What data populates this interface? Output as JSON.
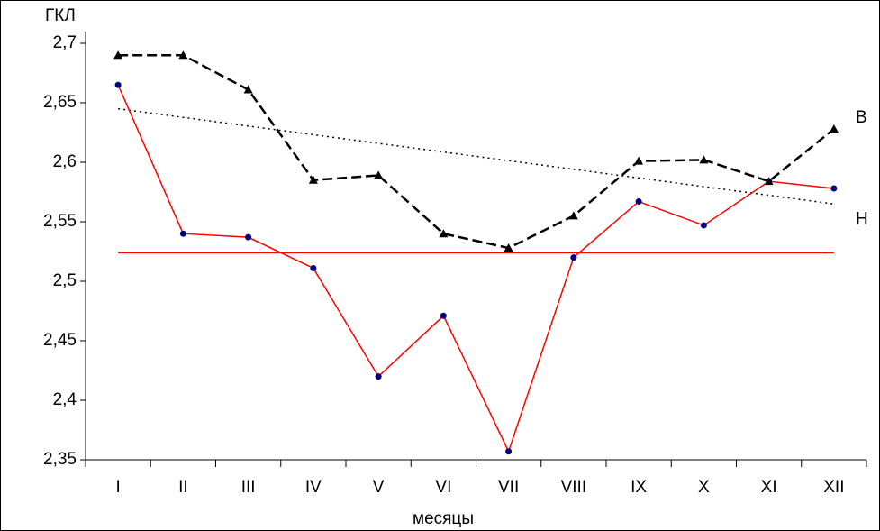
{
  "chart_data": {
    "type": "line",
    "y_label": "ГКЛ",
    "x_label": "месяцы",
    "categories": [
      "I",
      "II",
      "III",
      "IV",
      "V",
      "VI",
      "VII",
      "VIII",
      "IX",
      "X",
      "XI",
      "XII"
    ],
    "series": [
      {
        "color": "#ff0000",
        "marker": "circle",
        "marker_color": "#000080",
        "dash": "solid",
        "values": [
          2.665,
          2.54,
          2.537,
          2.511,
          2.42,
          2.471,
          2.357,
          2.52,
          2.567,
          2.547,
          2.584,
          2.578
        ]
      },
      {
        "color": "#000000",
        "marker": "triangle",
        "marker_color": "#000000",
        "dash": "dashed",
        "values": [
          2.69,
          2.69,
          2.661,
          2.585,
          2.589,
          2.54,
          2.528,
          2.555,
          2.601,
          2.602,
          2.584,
          2.628
        ]
      }
    ],
    "trend_line": {
      "color": "#000000",
      "values": [
        2.645,
        2.565
      ]
    },
    "mean_line": {
      "color": "#ff0000",
      "value": 2.524
    },
    "annotations": [
      {
        "text": "В",
        "value": 2.637
      },
      {
        "text": "Н",
        "value": 2.552
      }
    ],
    "ylim": [
      2.35,
      2.7
    ],
    "yticks": [
      {
        "value": 2.35,
        "label": "2,35"
      },
      {
        "value": 2.4,
        "label": "2,4"
      },
      {
        "value": 2.45,
        "label": "2,45"
      },
      {
        "value": 2.5,
        "label": "2,5"
      },
      {
        "value": 2.55,
        "label": "2,55"
      },
      {
        "value": 2.6,
        "label": "2,6"
      },
      {
        "value": 2.65,
        "label": "2,65"
      },
      {
        "value": 2.7,
        "label": "2,7"
      }
    ],
    "grid": false
  }
}
